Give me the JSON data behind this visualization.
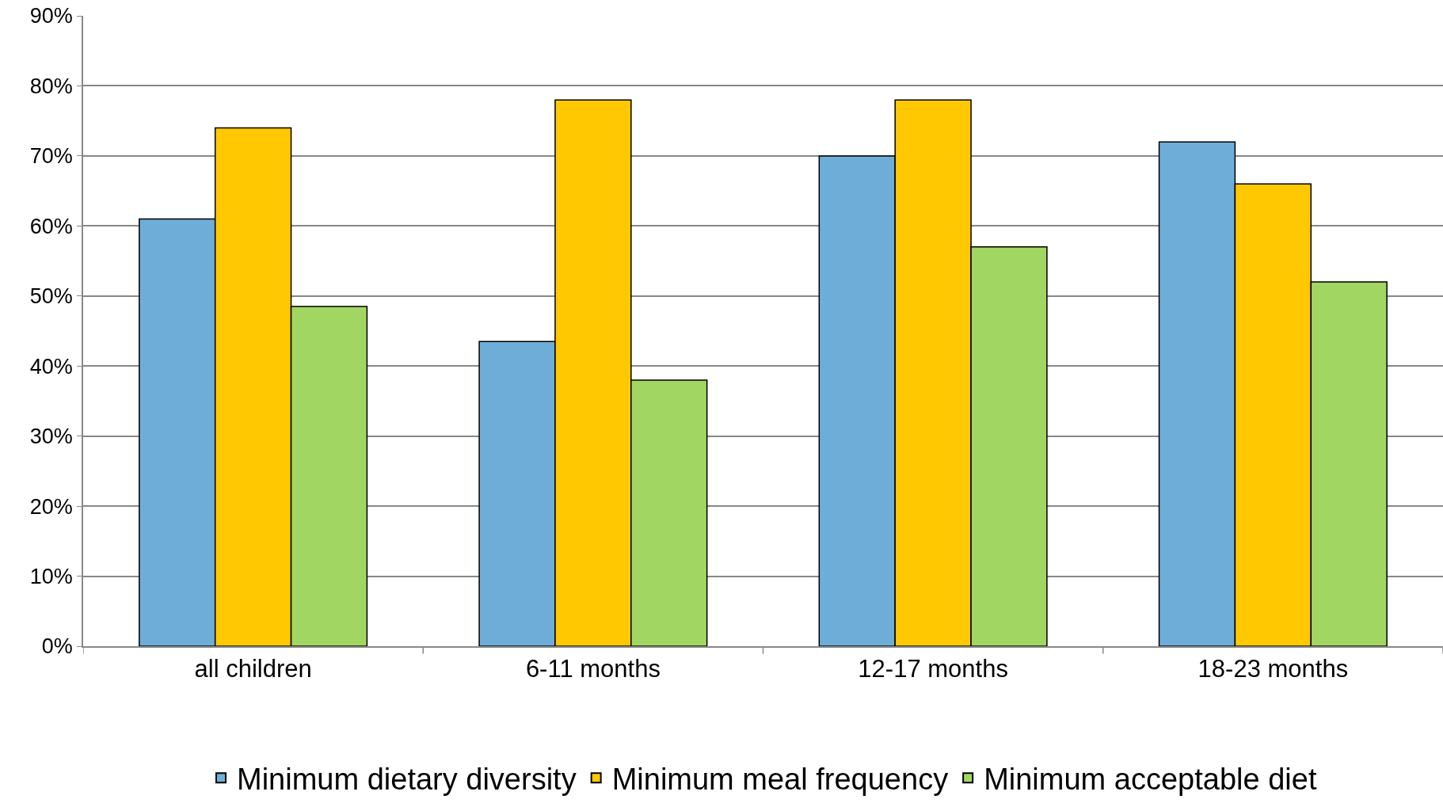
{
  "chart_data": {
    "type": "bar",
    "categories": [
      "all children",
      "6-11 months",
      "12-17 months",
      "18-23 months"
    ],
    "series": [
      {
        "name": "Minimum dietary diversity",
        "color": "#6fadd9",
        "values": [
          61,
          43.5,
          70,
          72
        ]
      },
      {
        "name": "Minimum meal frequency",
        "color": "#ffc800",
        "values": [
          74,
          78,
          78,
          66
        ]
      },
      {
        "name": "Minimum acceptable diet",
        "color": "#a2d662",
        "values": [
          48.5,
          38,
          57,
          52
        ]
      }
    ],
    "ylim": [
      0,
      90
    ],
    "yticks": [
      {
        "value": 0,
        "label": "0%"
      },
      {
        "value": 10,
        "label": "10%"
      },
      {
        "value": 20,
        "label": "20%"
      },
      {
        "value": 30,
        "label": "30%"
      },
      {
        "value": 40,
        "label": "40%"
      },
      {
        "value": 50,
        "label": "50%"
      },
      {
        "value": 60,
        "label": "60%"
      },
      {
        "value": 70,
        "label": "70%"
      },
      {
        "value": 80,
        "label": "80%"
      },
      {
        "value": 90,
        "label": "90%"
      }
    ],
    "grid": "y",
    "legend": "bottom"
  }
}
